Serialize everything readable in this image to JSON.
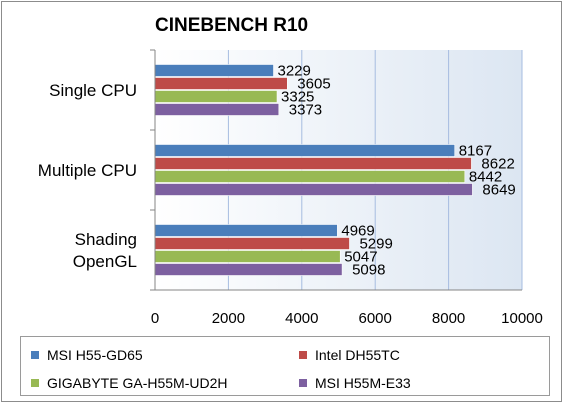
{
  "chart_data": {
    "type": "bar",
    "orientation": "horizontal",
    "title": "CINEBENCH R10",
    "categories": [
      "Single CPU",
      "Multiple CPU",
      "Shading OpenGL"
    ],
    "category_label_lines": [
      [
        "Single CPU"
      ],
      [
        "Multiple CPU"
      ],
      [
        "Shading",
        "OpenGL"
      ]
    ],
    "series": [
      {
        "name": "MSI H55-GD65",
        "color": "#4a7ebb",
        "values": [
          3229,
          8167,
          4969
        ]
      },
      {
        "name": "Intel DH55TC",
        "color": "#be4b48",
        "values": [
          3605,
          8622,
          5299
        ]
      },
      {
        "name": "GIGABYTE GA-H55M-UD2H",
        "color": "#98b954",
        "values": [
          3325,
          8442,
          5047
        ]
      },
      {
        "name": "MSI H55M-E33",
        "color": "#7d60a0",
        "values": [
          3373,
          8649,
          5098
        ]
      }
    ],
    "xlim": [
      0,
      10000
    ],
    "xticks": [
      0,
      2000,
      4000,
      6000,
      8000,
      10000
    ],
    "grid": true,
    "legend_position": "bottom"
  }
}
